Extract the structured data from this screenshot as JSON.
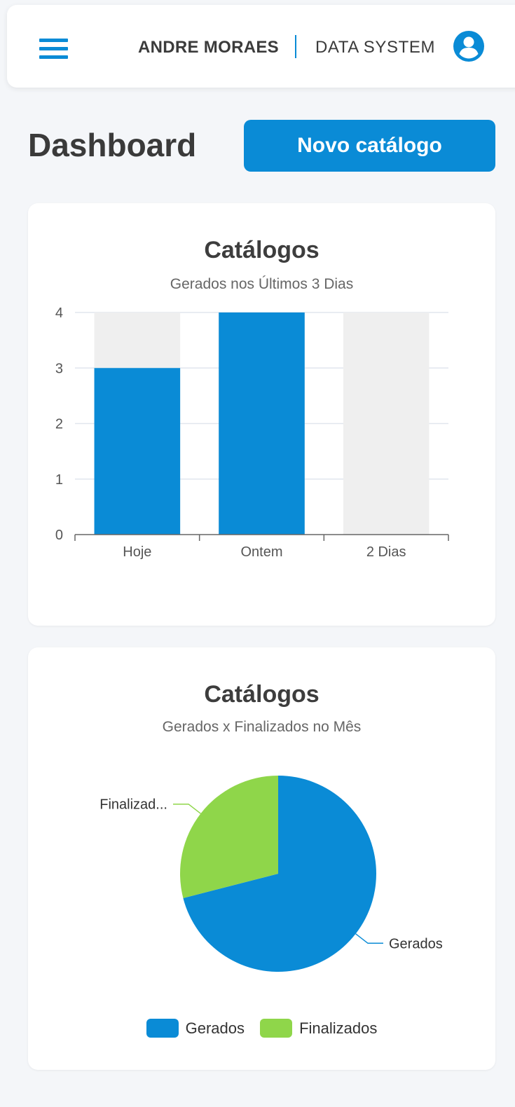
{
  "header": {
    "user_name": "ANDRE MORAES",
    "system_name": "DATA SYSTEM",
    "menu_icon": "hamburger-menu-icon",
    "avatar_icon": "user-circle-icon"
  },
  "page": {
    "title": "Dashboard",
    "new_button_label": "Novo catálogo"
  },
  "colors": {
    "primary": "#0a8bd6",
    "secondary": "#8fd64a",
    "bar_track": "#efefef"
  },
  "chart_data": [
    {
      "type": "bar",
      "title": "Catálogos",
      "subtitle": "Gerados nos Últimos 3 Dias",
      "categories": [
        "Hoje",
        "Ontem",
        "2 Dias"
      ],
      "values": [
        3,
        4,
        0
      ],
      "ylim": [
        0,
        4
      ],
      "yticks": [
        "0",
        "1",
        "2",
        "3",
        "4"
      ],
      "grid": true
    },
    {
      "type": "pie",
      "title": "Catálogos",
      "subtitle": "Gerados x Finalizados no Mês",
      "labels": [
        "Gerados",
        "Finalizados"
      ],
      "slice_labels": [
        "Gerados",
        "Finalizad..."
      ],
      "values": [
        71,
        29
      ],
      "legend": "bottom"
    }
  ]
}
